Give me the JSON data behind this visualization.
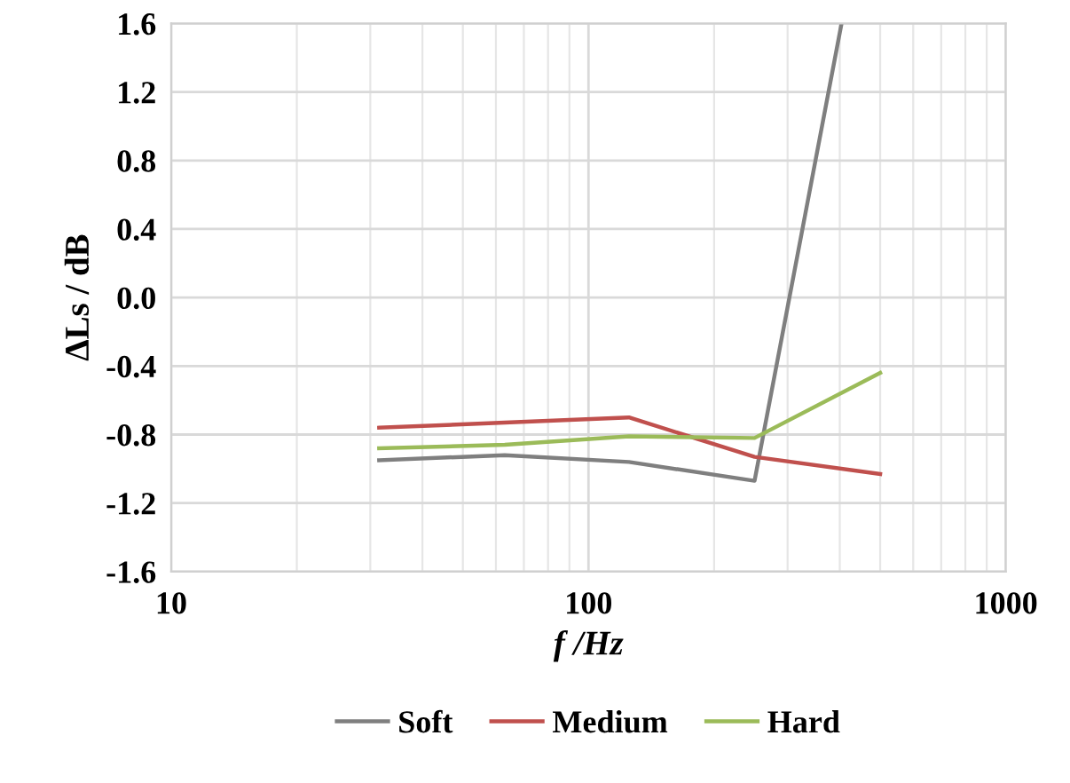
{
  "chart_data": {
    "type": "line",
    "xlabel": "f /Hz",
    "ylabel": "ΔLs / dB",
    "log": "x",
    "xlim": [
      10,
      1000
    ],
    "xticks": [
      10,
      100,
      1000
    ],
    "ylim": [
      -1.6,
      1.6
    ],
    "yticks": [
      {
        "value": -1.6,
        "label": "-1.6"
      },
      {
        "value": -1.2,
        "label": "-1.2"
      },
      {
        "value": -0.8,
        "label": "-0.8"
      },
      {
        "value": -0.4,
        "label": "-0.4"
      },
      {
        "value": 0,
        "label": "0.0"
      },
      {
        "value": 0.4,
        "label": "0.4"
      },
      {
        "value": 0.8,
        "label": "0.8"
      },
      {
        "value": 1.2,
        "label": "1.2"
      },
      {
        "value": 1.6,
        "label": "1.6"
      }
    ],
    "grid": true,
    "legend": "bottom",
    "marker": "none",
    "line_style": "solid",
    "series": [
      {
        "name": "Soft",
        "color": "#7f7f7f",
        "x": [
          31.5,
          63,
          125,
          250,
          404
        ],
        "values": [
          -0.95,
          -0.92,
          -0.96,
          -1.07,
          1.6
        ]
      },
      {
        "name": "Medium",
        "color": "#c0504d",
        "x": [
          31.5,
          63,
          125,
          250,
          500
        ],
        "values": [
          -0.76,
          -0.73,
          -0.7,
          -0.93,
          -1.03
        ]
      },
      {
        "name": "Hard",
        "color": "#9bbb59",
        "x": [
          31.5,
          63,
          125,
          250,
          500
        ],
        "values": [
          -0.88,
          -0.86,
          -0.81,
          -0.82,
          -0.44
        ]
      }
    ]
  }
}
